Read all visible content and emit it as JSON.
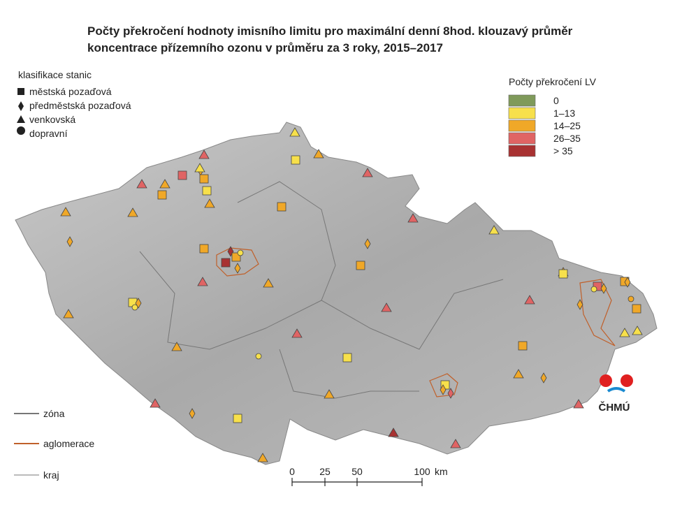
{
  "header": {
    "title_lines": [
      "Počty překročení hodnoty imisního limitu pro maximální denní 8hod. klouzavý průměr",
      "koncentrace přízemního ozonu v průměru za 3 roky, 2015–2017"
    ]
  },
  "station_legend": {
    "title": "klasifikace stanic",
    "items": [
      "městská pozaďová",
      "předměstská pozaďová",
      "venkovská",
      "dopravní"
    ]
  },
  "count_legend": {
    "title": "Počty překročení LV",
    "items": [
      {
        "label": "0",
        "color": "#7f9a5a"
      },
      {
        "label": "1–13",
        "color": "#f7e04b"
      },
      {
        "label": "14–25",
        "color": "#f0a828"
      },
      {
        "label": "26–35",
        "color": "#e06464"
      },
      {
        "label": "> 35",
        "color": "#a83232"
      }
    ]
  },
  "line_legend": {
    "items": [
      "zóna",
      "aglomerace",
      "kraj"
    ]
  },
  "scale": {
    "ticks": [
      "0",
      "25",
      "50",
      "100"
    ],
    "unit": "km"
  },
  "logo": {
    "text": "ČHMÚ"
  }
}
